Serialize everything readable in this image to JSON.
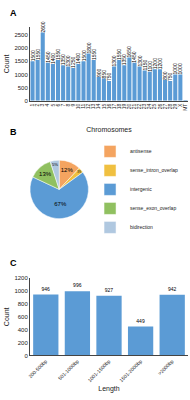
{
  "chart_data": [
    {
      "type": "bar",
      "title": "A",
      "categories": [
        "1",
        "2",
        "3",
        "4",
        "5",
        "6",
        "7",
        "8",
        "9",
        "10",
        "11",
        "12",
        "13",
        "14",
        "15",
        "16",
        "17",
        "18",
        "19",
        "20",
        "21",
        "22",
        "23",
        "24",
        "25",
        "26",
        "27",
        "28",
        "29",
        "X",
        "MT"
      ],
      "values": [
        1500,
        1550,
        2600,
        1450,
        1400,
        1550,
        1350,
        1300,
        1250,
        1400,
        1500,
        1800,
        1550,
        900,
        850,
        750,
        1300,
        1550,
        1350,
        1650,
        1450,
        1300,
        1150,
        1100,
        1200,
        1200,
        800,
        750,
        1000,
        1000,
        5
      ],
      "value_labels": [
        "1500",
        "1550",
        "2600",
        "1450",
        "1400",
        "1550",
        "1350",
        "1300",
        "1250",
        "1400",
        "1500",
        "1800",
        "1550",
        "900",
        "850",
        "750",
        "1300",
        "1550",
        "1350",
        "1650",
        "1450",
        "1300",
        "1150",
        "1100",
        "1200",
        "1200",
        "800",
        "750",
        "1000",
        "1000",
        null
      ],
      "color": "#5b9bd5",
      "xlabel": "Chromosomes",
      "ylabel": "Count",
      "ylim": [
        0,
        2800
      ],
      "yticks": [
        0,
        500,
        1000,
        1500,
        2000,
        2500
      ],
      "data_labels": true,
      "grid": false
    },
    {
      "type": "pie",
      "title": "B",
      "categories": [
        "antisense",
        "sense_intron_overlap",
        "intergenic",
        "sense_exon_overlap",
        "bidirection"
      ],
      "values": [
        12,
        3,
        67,
        13,
        5
      ],
      "value_labels": [
        "12%",
        "3%",
        "67%",
        "13%",
        "5%"
      ],
      "colors": [
        "#f4a460",
        "#f0c040",
        "#5b9bd5",
        "#90c060",
        "#b0c8e0"
      ],
      "data_labels": true,
      "legend": "right"
    },
    {
      "type": "bar",
      "title": "C",
      "categories": [
        "200-500bp",
        "501-1000bp",
        "1001-1500bp",
        "1501-2000bp",
        ">2000bp"
      ],
      "values": [
        946,
        996,
        927,
        449,
        942
      ],
      "color": "#5b9bd5",
      "xlabel": "Length",
      "ylabel": "Count",
      "ylim": [
        0,
        1200
      ],
      "yticks": [
        0,
        200,
        400,
        600,
        800,
        1000,
        1200
      ],
      "data_labels": true,
      "grid": false
    }
  ]
}
